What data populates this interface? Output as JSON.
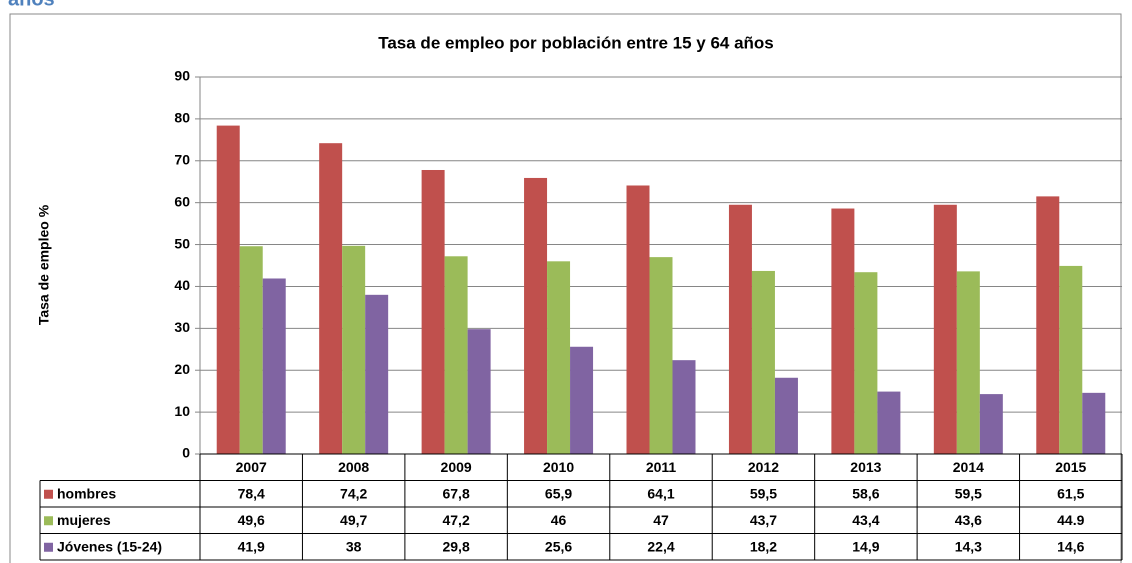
{
  "heading": "años",
  "chart_data": {
    "type": "bar",
    "title": "Tasa de empleo por población entre 15 y 64 años",
    "y_label": "Tasa de empleo %",
    "categories": [
      "2007",
      "2008",
      "2009",
      "2010",
      "2011",
      "2012",
      "2013",
      "2014",
      "2015"
    ],
    "series": [
      {
        "name": "hombres",
        "color": "#c0504d",
        "values": [
          78.4,
          74.2,
          67.8,
          65.9,
          64.1,
          59.5,
          58.6,
          59.5,
          61.5
        ],
        "value_labels": [
          "78,4",
          "74,2",
          "67,8",
          "65,9",
          "64,1",
          "59,5",
          "58,6",
          "59,5",
          "61,5"
        ]
      },
      {
        "name": "mujeres",
        "color": "#9bbb59",
        "values": [
          49.6,
          49.7,
          47.2,
          46,
          47,
          43.7,
          43.4,
          43.6,
          44.9
        ],
        "value_labels": [
          "49,6",
          "49,7",
          "47,2",
          "46",
          "47",
          "43,7",
          "43,4",
          "43,6",
          "44.9"
        ]
      },
      {
        "name": "Jóvenes (15-24)",
        "color": "#8064a2",
        "values": [
          41.9,
          38,
          29.8,
          25.6,
          22.4,
          18.2,
          14.9,
          14.3,
          14.6
        ],
        "value_labels": [
          "41,9",
          "38",
          "29,8",
          "25,6",
          "22,4",
          "18,2",
          "14,9",
          "14,3",
          "14,6"
        ]
      }
    ],
    "ylim": [
      0,
      90
    ],
    "yticks": [
      0,
      10,
      20,
      30,
      40,
      50,
      60,
      70,
      80,
      90
    ],
    "grid": true
  }
}
